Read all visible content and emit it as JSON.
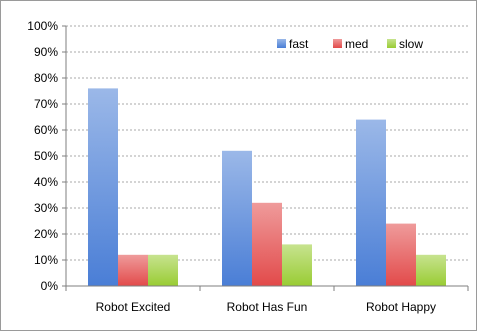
{
  "chart_data": {
    "type": "bar",
    "categories": [
      "Robot Excited",
      "Robot Has Fun",
      "Robot Happy"
    ],
    "series": [
      {
        "name": "fast",
        "values": [
          76,
          52,
          64
        ],
        "color": "#4a7ed6"
      },
      {
        "name": "med",
        "values": [
          12,
          32,
          24
        ],
        "color": "#e24a4a"
      },
      {
        "name": "slow",
        "values": [
          12,
          16,
          12
        ],
        "color": "#99cc33"
      }
    ],
    "ylim": [
      0,
      100
    ],
    "yticks": [
      "0%",
      "10%",
      "20%",
      "30%",
      "40%",
      "50%",
      "60%",
      "70%",
      "80%",
      "90%",
      "100%"
    ],
    "grid": true,
    "legend": "top-right"
  }
}
